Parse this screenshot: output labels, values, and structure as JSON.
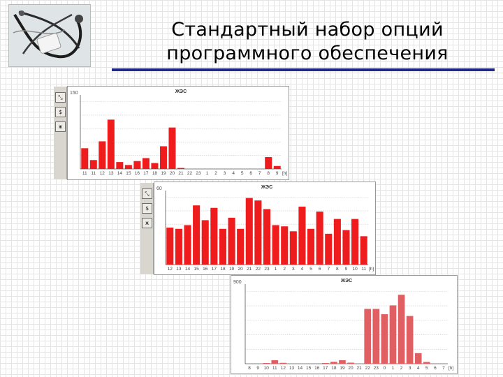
{
  "slide": {
    "title_line1": "Стандартный набор опций",
    "title_line2": "программного обеспечения"
  },
  "colors": {
    "bar": "#ee1c1c",
    "bar_muted": "#df5f63",
    "title_rule": "#1e2a86",
    "toolbar": "#d9d6cf"
  },
  "toolbar_buttons": [
    {
      "icon": "scale-fit-icon",
      "label": "⤡"
    },
    {
      "icon": "sigma-icon",
      "label": "$"
    },
    {
      "icon": "table-icon",
      "label": "ж"
    }
  ],
  "chart_data": [
    {
      "type": "bar",
      "title": "ЖЭС",
      "ymax_label": "150",
      "unit_label": "[h]",
      "ylim": [
        0,
        150
      ],
      "grid": true,
      "categories": [
        "11",
        "11",
        "12",
        "13",
        "14",
        "15",
        "16",
        "17",
        "18",
        "19",
        "20",
        "21",
        "22",
        "23",
        "1",
        "2",
        "3",
        "4",
        "5",
        "6",
        "7",
        "8",
        "9"
      ],
      "values": [
        42,
        18,
        56,
        100,
        14,
        8,
        16,
        22,
        12,
        46,
        84,
        2,
        0,
        0,
        0,
        0,
        0,
        0,
        0,
        0,
        0,
        24,
        6
      ]
    },
    {
      "type": "bar",
      "title": "ЖЭС",
      "ymax_label": "60",
      "unit_label": "[h]",
      "ylim": [
        0,
        60
      ],
      "grid": true,
      "categories": [
        "12",
        "13",
        "14",
        "15",
        "16",
        "17",
        "18",
        "19",
        "20",
        "21",
        "22",
        "23",
        "1",
        "2",
        "3",
        "4",
        "5",
        "6",
        "7",
        "8",
        "9",
        "10",
        "11"
      ],
      "values": [
        30,
        29,
        32,
        48,
        36,
        46,
        29,
        38,
        29,
        54,
        52,
        45,
        32,
        31,
        27,
        47,
        29,
        43,
        25,
        37,
        28,
        37,
        23
      ]
    },
    {
      "type": "bar",
      "title": "ЖЭС",
      "ymax_label": "900",
      "unit_label": "[h]",
      "ylim": [
        0,
        900
      ],
      "grid": true,
      "categories": [
        "8",
        "9",
        "10",
        "11",
        "12",
        "13",
        "14",
        "15",
        "16",
        "17",
        "18",
        "19",
        "20",
        "21",
        "22",
        "23",
        "0",
        "1",
        "2",
        "3",
        "4",
        "5",
        "6",
        "7"
      ],
      "values": [
        0,
        0,
        8,
        40,
        10,
        0,
        0,
        0,
        0,
        8,
        22,
        40,
        12,
        0,
        620,
        620,
        560,
        660,
        780,
        540,
        120,
        20,
        0,
        0
      ]
    }
  ]
}
